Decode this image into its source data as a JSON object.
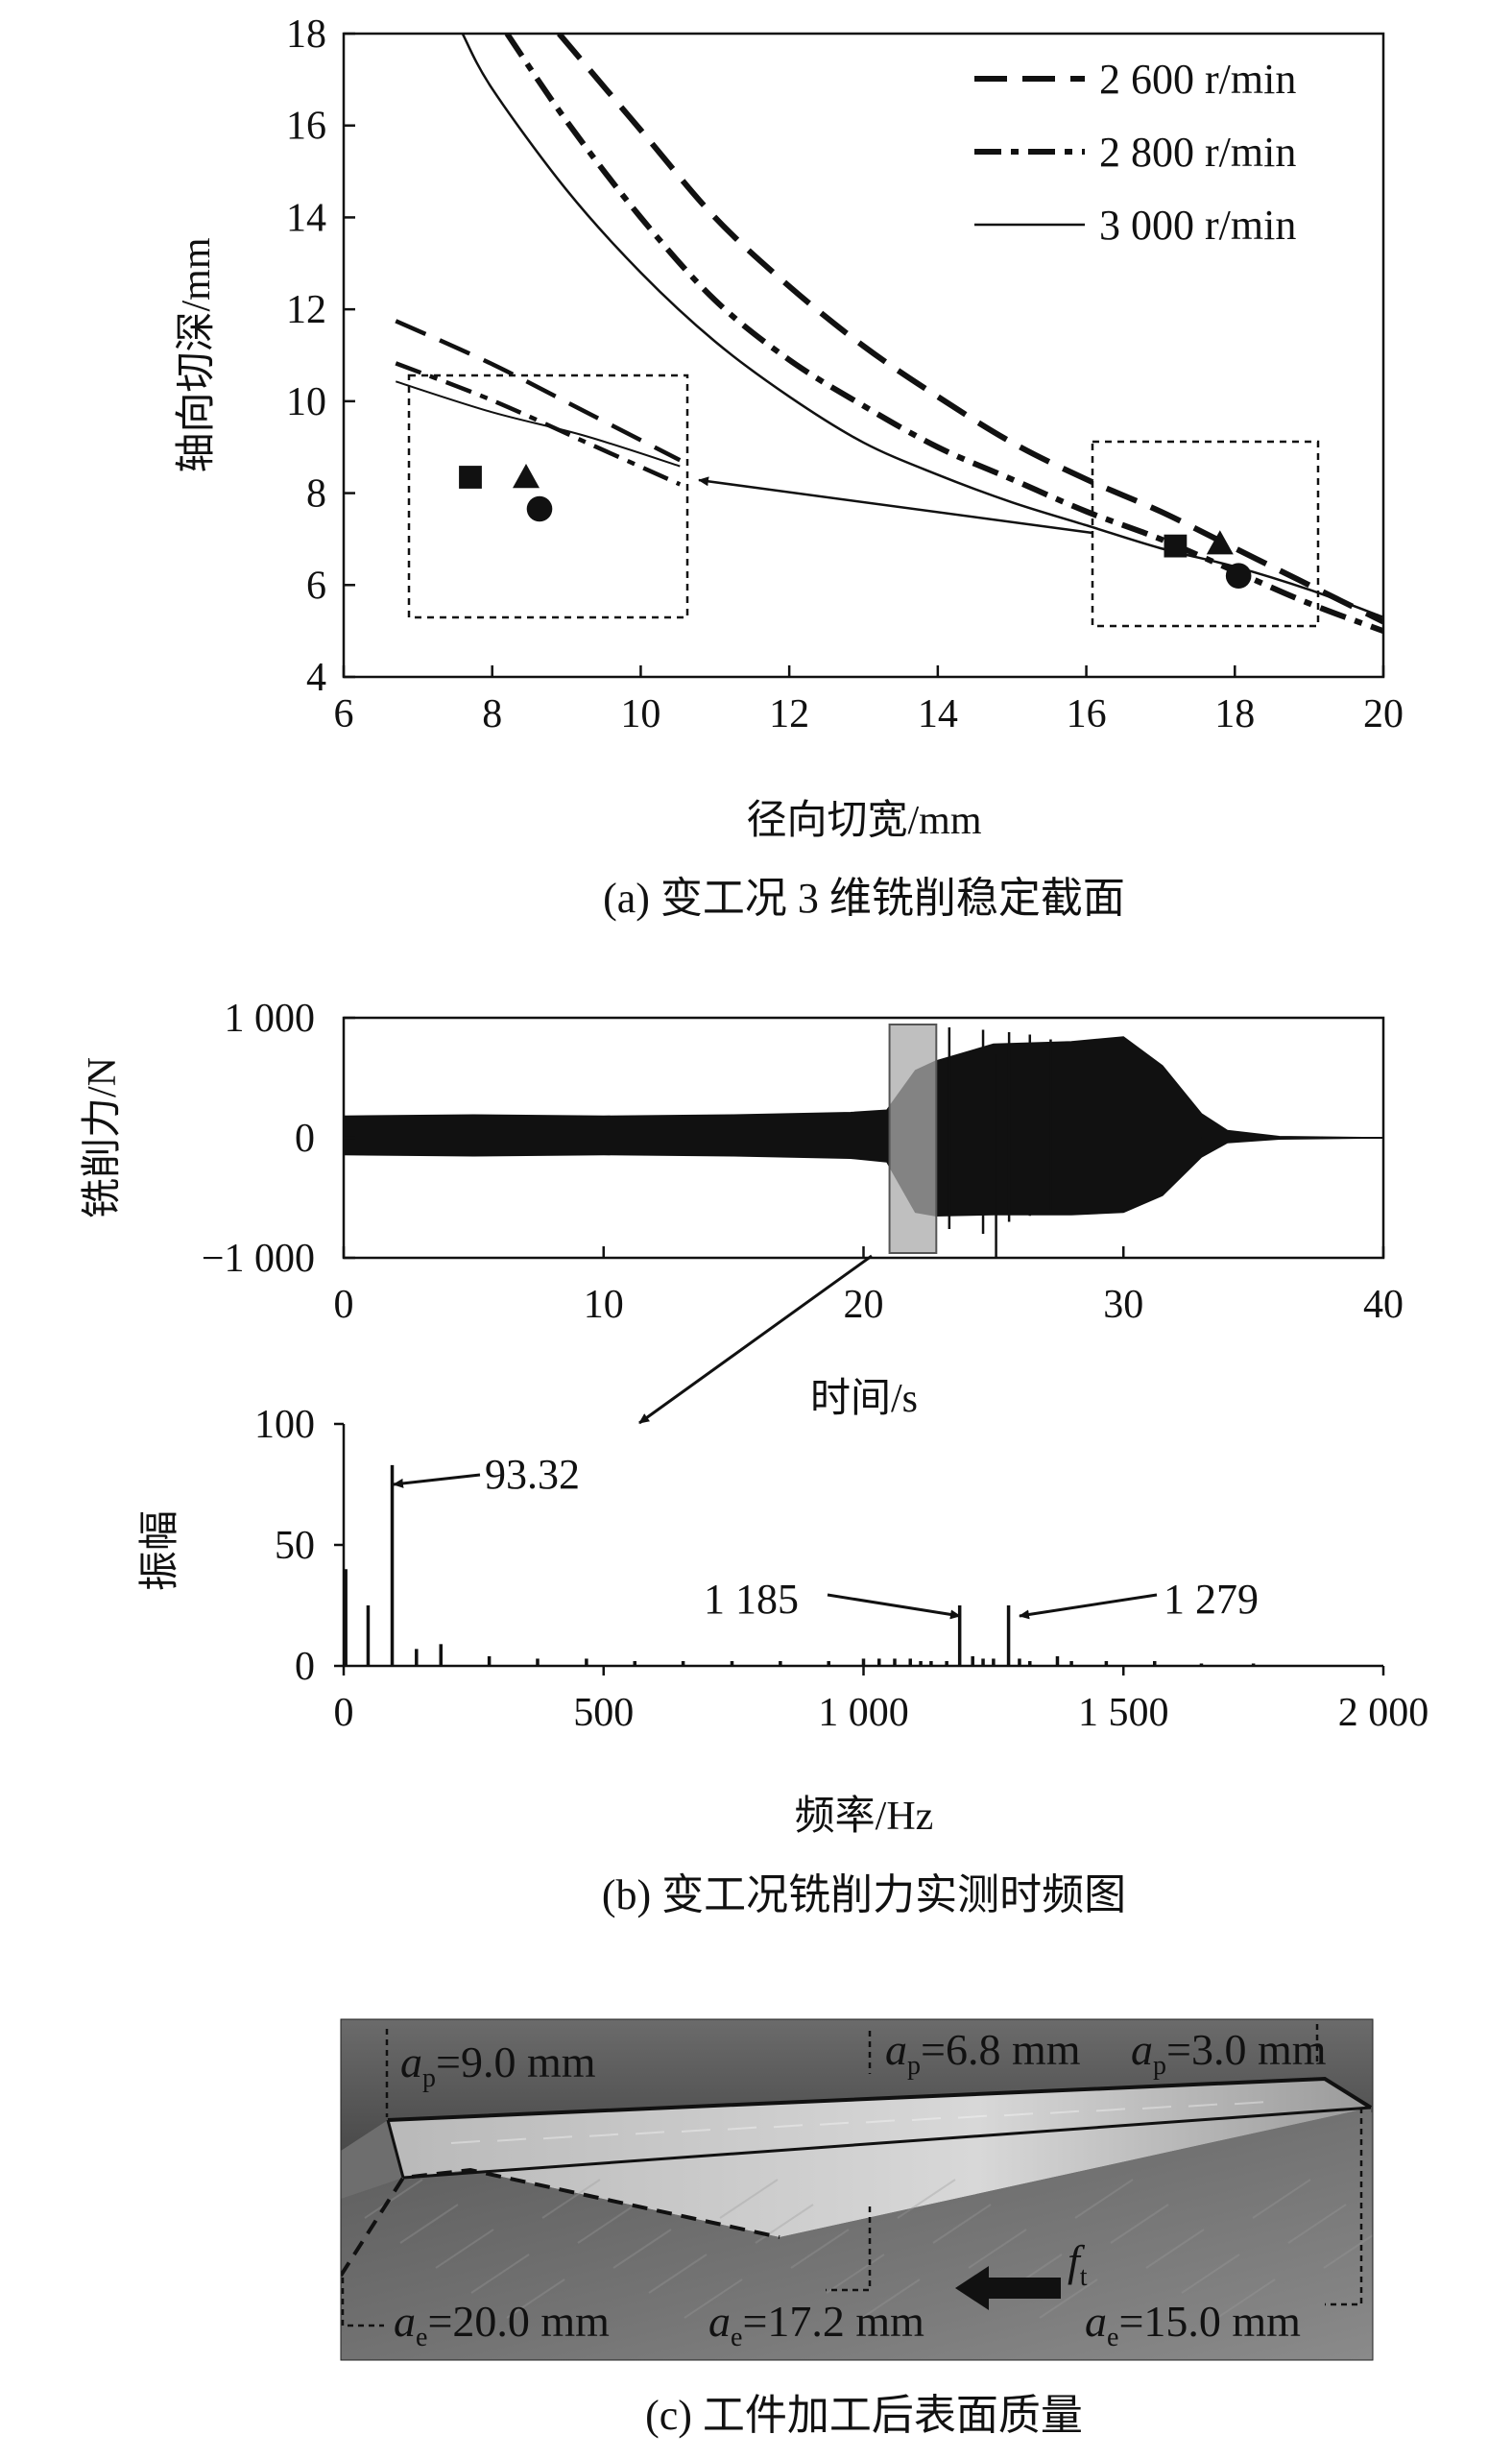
{
  "panels": {
    "a": {
      "caption": "(a) 变工况 3 维铣削稳定截面",
      "chart_data": {
        "type": "line",
        "xlabel": "径向切宽/mm",
        "ylabel": "轴向切深/mm",
        "xlim": [
          6,
          20
        ],
        "ylim": [
          4,
          18
        ],
        "xticks": [
          "6",
          "8",
          "10",
          "12",
          "14",
          "16",
          "18",
          "20"
        ],
        "yticks": [
          "4",
          "6",
          "8",
          "10",
          "12",
          "14",
          "16",
          "18"
        ],
        "series": [
          {
            "name": "2 600 r/min",
            "style": "dash",
            "x": [
              8.9,
              10,
              11,
              12,
              13,
              14,
              15,
              16,
              17,
              18,
              19,
              20
            ],
            "y": [
              18.0,
              15.9,
              14.0,
              12.5,
              11.2,
              10.1,
              9.1,
              8.3,
              7.6,
              6.8,
              6.0,
              5.2
            ]
          },
          {
            "name": "2 800 r/min",
            "style": "dashdot",
            "x": [
              8.2,
              9,
              10,
              11,
              12,
              13,
              14,
              15,
              16,
              17,
              18,
              19,
              20
            ],
            "y": [
              18.0,
              16.1,
              14.0,
              12.2,
              10.9,
              9.9,
              9.0,
              8.3,
              7.6,
              7.0,
              6.3,
              5.6,
              5.0
            ]
          },
          {
            "name": "3 000 r/min",
            "style": "solid",
            "x": [
              7.6,
              8,
              9,
              10,
              11,
              12,
              13,
              14,
              15,
              16,
              17,
              18,
              19,
              20
            ],
            "y": [
              18.0,
              16.8,
              14.6,
              12.8,
              11.3,
              10.1,
              9.1,
              8.4,
              7.8,
              7.3,
              6.8,
              6.4,
              5.9,
              5.3
            ]
          }
        ],
        "markers": [
          {
            "shape": "triangle",
            "x": 17.8,
            "y": 6.9
          },
          {
            "shape": "square",
            "x": 17.2,
            "y": 6.85
          },
          {
            "shape": "circle",
            "x": 18.05,
            "y": 6.2
          }
        ],
        "inset": {
          "note": "magnified view of the 16.2–19.2 mm region"
        }
      }
    },
    "b": {
      "caption": "(b) 变工况铣削力实测时频图",
      "chart_data": [
        {
          "type": "area",
          "title": "",
          "xlabel": "时间/s",
          "ylabel": "铣削力/N",
          "xlim": [
            0,
            40
          ],
          "ylim": [
            -1000,
            1000
          ],
          "xticks": [
            "0",
            "10",
            "20",
            "30",
            "40"
          ],
          "yticks": [
            "−1 000",
            "0",
            "1 000"
          ],
          "envelope": {
            "t": [
              0,
              5,
              10,
              15,
              19.5,
              20.9,
              22,
              22.8,
              25,
              28,
              30,
              31.5,
              33,
              34,
              36,
              40
            ],
            "upper": [
              180,
              190,
              180,
              190,
              210,
              230,
              560,
              640,
              780,
              800,
              840,
              600,
              200,
              60,
              10,
              0
            ],
            "lower": [
              -140,
              -150,
              -140,
              -150,
              -170,
              -200,
              -620,
              -650,
              -640,
              -640,
              -620,
              -480,
              -160,
              -40,
              -10,
              0
            ]
          },
          "highlight_window": [
            21,
            22.8
          ]
        },
        {
          "type": "bar",
          "xlabel": "频率/Hz",
          "ylabel": "振幅",
          "xlim": [
            0,
            2000
          ],
          "ylim": [
            0,
            100
          ],
          "xticks": [
            "0",
            "500",
            "1 000",
            "1 500",
            "2 000"
          ],
          "yticks": [
            "0",
            "50",
            "100"
          ],
          "x": [
            4,
            47,
            93.32,
            140,
            187,
            280,
            373,
            467,
            560,
            653,
            747,
            840,
            933,
            1000,
            1030,
            1060,
            1090,
            1110,
            1130,
            1160,
            1185,
            1210,
            1230,
            1250,
            1279,
            1300,
            1320,
            1373,
            1400,
            1467,
            1560,
            1650,
            1750
          ],
          "values": [
            40,
            25,
            83,
            7,
            9,
            4,
            3,
            3,
            2,
            2,
            2,
            2,
            2,
            3,
            3,
            3,
            3,
            2,
            2,
            2,
            25,
            4,
            3,
            3,
            25,
            3,
            2,
            4,
            2,
            2,
            2,
            1,
            1
          ]
        }
      ],
      "annotations": {
        "peak1": "93.32",
        "peak2": "1 185",
        "peak3": "1 279"
      }
    },
    "c": {
      "caption": "(c) 工件加工后表面质量",
      "labels": {
        "ap1": "=9.0 mm",
        "ap2": "=6.8 mm",
        "ap3": "=3.0 mm",
        "ae1": "=20.0 mm",
        "ae2": "=17.2 mm",
        "ae3": "=15.0 mm",
        "a": "a",
        "sub_p": "p",
        "sub_e": "e",
        "f": "f",
        "sub_t": "t"
      }
    }
  },
  "colors": {
    "ink": "#111111",
    "photo_dark": "#3c3c3c",
    "photo_light": "#a9a9a9",
    "highlight": "#aaaaaa"
  }
}
